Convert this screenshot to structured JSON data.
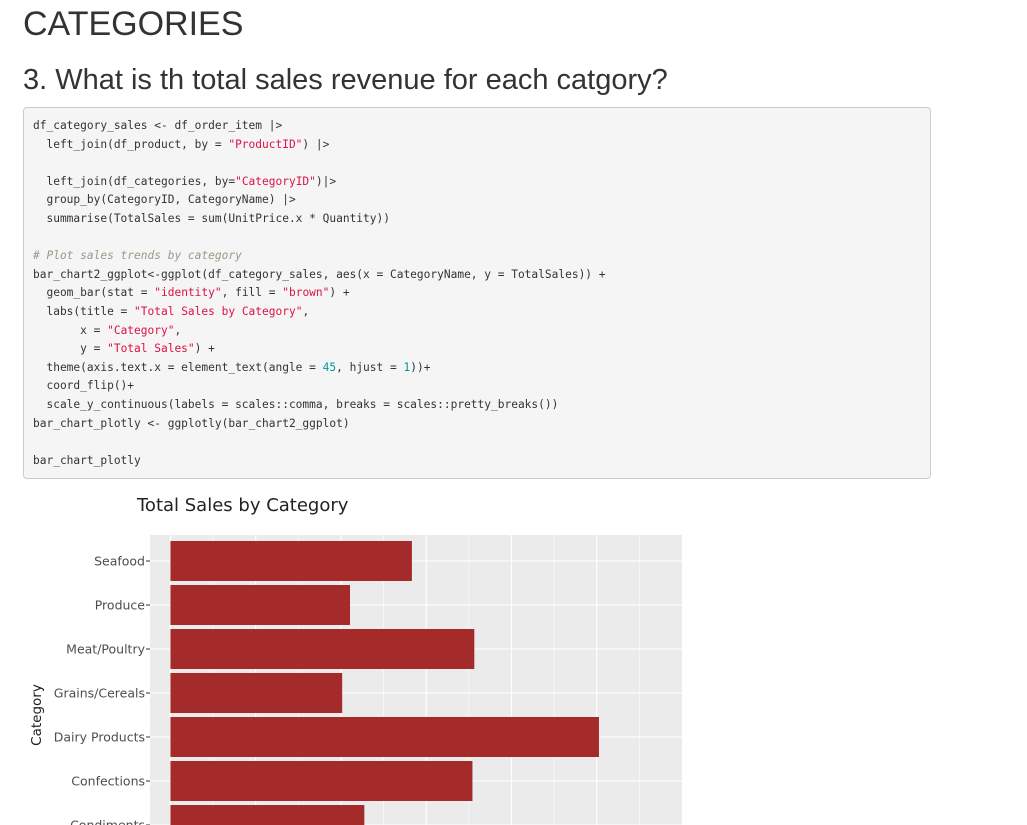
{
  "page": {
    "section_title": "CATEGORIES",
    "question_title": "3. What is th total sales revenue for each catgory?"
  },
  "code": {
    "lines": [
      [
        {
          "t": "df_category_sales <- df_order_item |>"
        }
      ],
      [
        {
          "t": "  left_join(df_product, by = "
        },
        {
          "t": "\"ProductID\"",
          "c": "str"
        },
        {
          "t": ") |>"
        }
      ],
      [
        {
          "t": ""
        }
      ],
      [
        {
          "t": "  left_join(df_categories, by="
        },
        {
          "t": "\"CategoryID\"",
          "c": "str"
        },
        {
          "t": ")|>"
        }
      ],
      [
        {
          "t": "  group_by(CategoryID, CategoryName) |>"
        }
      ],
      [
        {
          "t": "  summarise(TotalSales = sum(UnitPrice.x * Quantity))"
        }
      ],
      [
        {
          "t": ""
        }
      ],
      [
        {
          "t": "# Plot sales trends by category",
          "c": "cm"
        }
      ],
      [
        {
          "t": "bar_chart2_ggplot<-ggplot(df_category_sales, aes(x = CategoryName, y = TotalSales)) +"
        }
      ],
      [
        {
          "t": "  geom_bar(stat = "
        },
        {
          "t": "\"identity\"",
          "c": "str"
        },
        {
          "t": ", fill = "
        },
        {
          "t": "\"brown\"",
          "c": "str"
        },
        {
          "t": ") +"
        }
      ],
      [
        {
          "t": "  labs(title = "
        },
        {
          "t": "\"Total Sales by Category\"",
          "c": "str"
        },
        {
          "t": ","
        }
      ],
      [
        {
          "t": "       x = "
        },
        {
          "t": "\"Category\"",
          "c": "str"
        },
        {
          "t": ","
        }
      ],
      [
        {
          "t": "       y = "
        },
        {
          "t": "\"Total Sales\"",
          "c": "str"
        },
        {
          "t": ") +"
        }
      ],
      [
        {
          "t": "  theme(axis.text.x = element_text(angle = "
        },
        {
          "t": "45",
          "c": "num"
        },
        {
          "t": ", hjust = "
        },
        {
          "t": "1",
          "c": "num"
        },
        {
          "t": "))+"
        }
      ],
      [
        {
          "t": "  coord_flip()+"
        }
      ],
      [
        {
          "t": "  scale_y_continuous(labels = scales::comma, breaks = scales::pretty_breaks())"
        }
      ],
      [
        {
          "t": "bar_chart_plotly <- ggplotly(bar_chart2_ggplot)"
        }
      ],
      [
        {
          "t": ""
        }
      ],
      [
        {
          "t": "bar_chart_plotly"
        }
      ]
    ]
  },
  "chart_data": {
    "type": "bar",
    "orientation": "horizontal",
    "title": "Total Sales by Category",
    "ylabel": "Category",
    "xlabel": "",
    "bar_color": "#a52a2a",
    "panel_color": "#ebebeb",
    "categories": [
      "Seafood",
      "Produce",
      "Meat/Poultry",
      "Grains/Cereals",
      "Dairy Products",
      "Confections",
      "Condiments"
    ],
    "values": [
      141600,
      105300,
      178200,
      100700,
      251300,
      177100,
      113700
    ],
    "xlim": [
      -12000,
      300000
    ]
  }
}
